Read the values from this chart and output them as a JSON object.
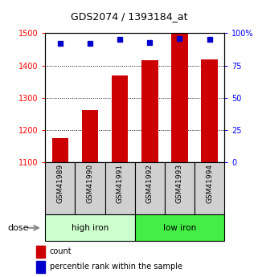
{
  "title": "GDS2074 / 1393184_at",
  "samples": [
    "GSM41989",
    "GSM41990",
    "GSM41991",
    "GSM41992",
    "GSM41993",
    "GSM41994"
  ],
  "counts": [
    1175,
    1262,
    1368,
    1415,
    1500,
    1418
  ],
  "percentiles": [
    92,
    92,
    95,
    93,
    96,
    95
  ],
  "y_min": 1100,
  "y_max": 1500,
  "y_ticks": [
    1100,
    1200,
    1300,
    1400,
    1500
  ],
  "y2_ticks": [
    0,
    25,
    50,
    75,
    100
  ],
  "y2_ticklabels": [
    "0",
    "25",
    "50",
    "75",
    "100%"
  ],
  "bar_color": "#cc0000",
  "dot_color": "#0000cc",
  "bar_width": 0.55,
  "group_hi_color": "#ccffcc",
  "group_lo_color": "#44ee44",
  "sample_box_color": "#d0d0d0",
  "dose_label": "dose",
  "legend_count": "count",
  "legend_percentile": "percentile rank within the sample"
}
